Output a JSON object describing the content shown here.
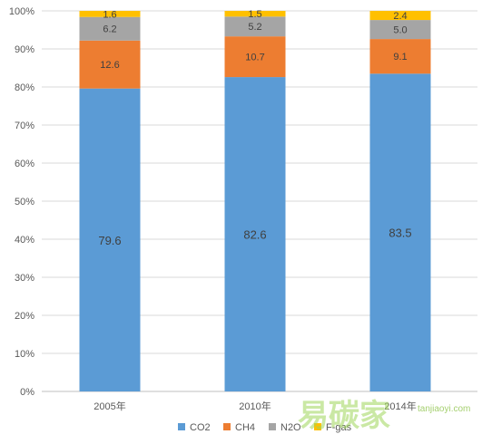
{
  "chart_data": {
    "type": "bar",
    "stacked": true,
    "categories": [
      "2005年",
      "2010年",
      "2014年"
    ],
    "series": [
      {
        "name": "CO2",
        "color": "#5b9bd5",
        "values": [
          79.6,
          82.6,
          83.5
        ]
      },
      {
        "name": "CH4",
        "color": "#ed7d31",
        "values": [
          12.6,
          10.7,
          9.1
        ]
      },
      {
        "name": "N2O",
        "color": "#a5a5a5",
        "values": [
          6.2,
          5.2,
          5.0
        ]
      },
      {
        "name": "F-gas",
        "color": "#ffc000",
        "values": [
          1.6,
          1.5,
          2.4
        ]
      }
    ],
    "ylim": [
      0,
      100
    ],
    "yticks": [
      "0%",
      "10%",
      "20%",
      "30%",
      "40%",
      "50%",
      "60%",
      "70%",
      "80%",
      "90%",
      "100%"
    ],
    "grid": true,
    "legend_position": "bottom"
  },
  "watermark": {
    "text": "易碳家",
    "subtext": "tanjiaoyi.com"
  }
}
